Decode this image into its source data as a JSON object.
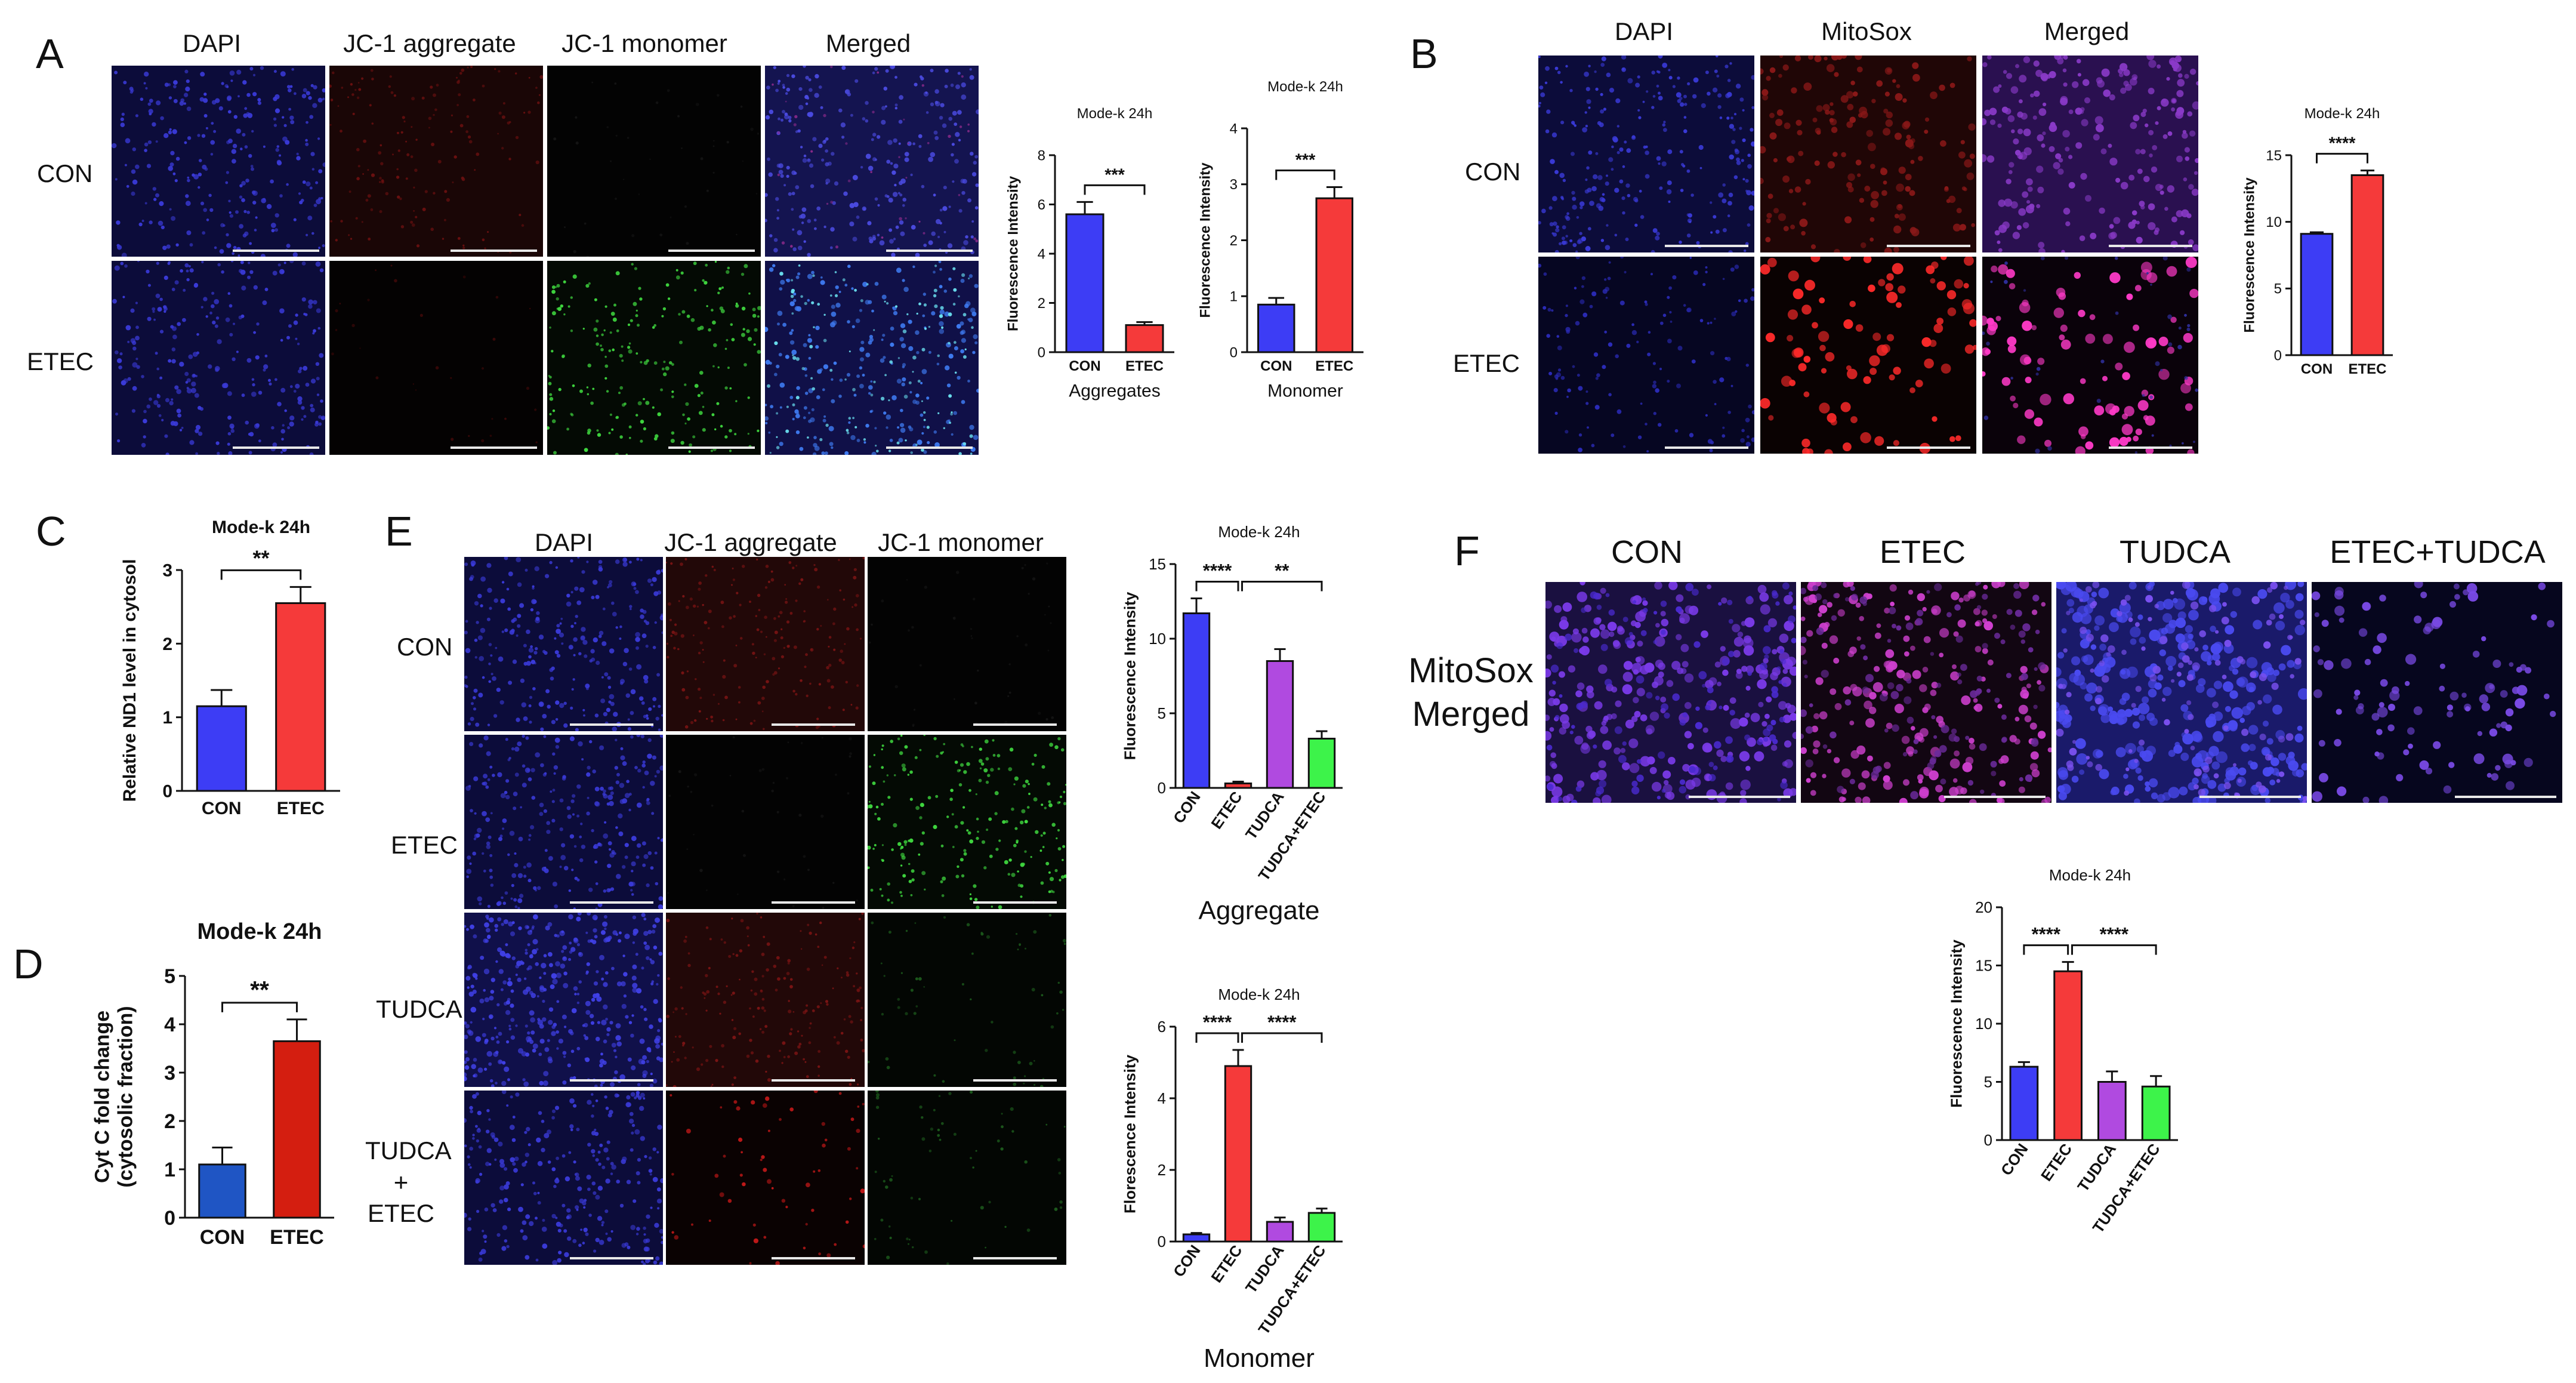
{
  "panels": {
    "A": {
      "label": "A",
      "columns": [
        "DAPI",
        "JC-1 aggregate",
        "JC-1 monomer",
        "Merged"
      ],
      "rows": [
        "CON",
        "ETEC"
      ]
    },
    "B": {
      "label": "B",
      "columns": [
        "DAPI",
        "MitoSox",
        "Merged"
      ],
      "rows": [
        "CON",
        "ETEC"
      ]
    },
    "C": {
      "label": "C"
    },
    "D": {
      "label": "D"
    },
    "E": {
      "label": "E",
      "columns": [
        "DAPI",
        "JC-1 aggregate",
        "JC-1 monomer"
      ],
      "rows": [
        "CON",
        "ETEC",
        "TUDCA",
        "TUDCA\n+\nETEC"
      ]
    },
    "F": {
      "label": "F",
      "columns": [
        "CON",
        "ETEC",
        "TUDCA",
        "ETEC+TUDCA"
      ],
      "row_label": "MitoSox\nMerged"
    }
  },
  "colors": {
    "con": "#3d3df5",
    "etec": "#f53a3a",
    "tudca": "#b04ae0",
    "tudca_etec": "#3df34a",
    "con_dark": "#1f55c4",
    "etec_dark": "#d41e10"
  },
  "chart_data": [
    {
      "id": "A1",
      "type": "bar",
      "title": "Mode-k 24h",
      "ylabel": "Fluorescence Intensity",
      "xlabel": "Aggregates",
      "categories": [
        "CON",
        "ETEC"
      ],
      "values": [
        5.6,
        1.1
      ],
      "errors": [
        0.5,
        0.12
      ],
      "ylim": [
        0,
        8
      ],
      "yticks": [
        0,
        2,
        4,
        6,
        8
      ],
      "significance": [
        {
          "from": 0,
          "to": 1,
          "label": "***"
        }
      ]
    },
    {
      "id": "A2",
      "type": "bar",
      "title": "Mode-k 24h",
      "ylabel": "Fluorescence Intensity",
      "xlabel": "Monomer",
      "categories": [
        "CON",
        "ETEC"
      ],
      "values": [
        0.85,
        2.75
      ],
      "errors": [
        0.12,
        0.2
      ],
      "ylim": [
        0,
        4
      ],
      "yticks": [
        0,
        1,
        2,
        3,
        4
      ],
      "significance": [
        {
          "from": 0,
          "to": 1,
          "label": "***"
        }
      ]
    },
    {
      "id": "B1",
      "type": "bar",
      "title": "Mode-k 24h",
      "ylabel": "Fluorescence Intensity",
      "xlabel": "",
      "categories": [
        "CON",
        "ETEC"
      ],
      "values": [
        9.1,
        13.5
      ],
      "errors": [
        0.12,
        0.35
      ],
      "ylim": [
        0,
        15
      ],
      "yticks": [
        0,
        5,
        10,
        15
      ],
      "significance": [
        {
          "from": 0,
          "to": 1,
          "label": "****"
        }
      ]
    },
    {
      "id": "C1",
      "type": "bar",
      "title": "Mode-k 24h",
      "ylabel": "Relative ND1 level in cytosol",
      "xlabel": "",
      "categories": [
        "CON",
        "ETEC"
      ],
      "values": [
        1.15,
        2.55
      ],
      "errors": [
        0.22,
        0.22
      ],
      "ylim": [
        0,
        3
      ],
      "yticks": [
        0,
        1,
        2,
        3
      ],
      "significance": [
        {
          "from": 0,
          "to": 1,
          "label": "**"
        }
      ]
    },
    {
      "id": "D1",
      "type": "bar",
      "title": "Mode-k 24h",
      "ylabel": "Cyt C fold change\n(cytosolic fraction)",
      "xlabel": "",
      "categories": [
        "CON",
        "ETEC"
      ],
      "values": [
        1.1,
        3.65
      ],
      "errors": [
        0.35,
        0.45
      ],
      "ylim": [
        0,
        5
      ],
      "yticks": [
        0,
        1,
        2,
        3,
        4,
        5
      ],
      "significance": [
        {
          "from": 0,
          "to": 1,
          "label": "**"
        }
      ]
    },
    {
      "id": "E1",
      "type": "bar",
      "title": "Mode-k 24h",
      "ylabel": "Fluorescence Intensity",
      "xlabel": "Aggregate",
      "categories": [
        "CON",
        "ETEC",
        "TUDCA",
        "TUDCA+ETEC"
      ],
      "values": [
        11.7,
        0.3,
        8.5,
        3.3
      ],
      "errors": [
        1.0,
        0.12,
        0.8,
        0.5
      ],
      "ylim": [
        0,
        15
      ],
      "yticks": [
        0,
        5,
        10,
        15
      ],
      "significance": [
        {
          "from": 0,
          "to": 1,
          "label": "****"
        },
        {
          "from": 1,
          "to": 3,
          "label": "**"
        }
      ]
    },
    {
      "id": "E2",
      "type": "bar",
      "title": "Mode-k 24h",
      "ylabel": "Florescence Intensity",
      "xlabel": "Monomer",
      "categories": [
        "CON",
        "ETEC",
        "TUDCA",
        "TUDCA+ETEC"
      ],
      "values": [
        0.2,
        4.9,
        0.55,
        0.8
      ],
      "errors": [
        0.04,
        0.45,
        0.12,
        0.12
      ],
      "ylim": [
        0,
        6
      ],
      "yticks": [
        0,
        2,
        4,
        6
      ],
      "significance": [
        {
          "from": 0,
          "to": 1,
          "label": "****"
        },
        {
          "from": 1,
          "to": 3,
          "label": "****"
        }
      ]
    },
    {
      "id": "F1",
      "type": "bar",
      "title": "Mode-k 24h",
      "ylabel": "Fluorescence Intensity",
      "xlabel": "",
      "categories": [
        "CON",
        "ETEC",
        "TUDCA",
        "TUDCA+ETEC"
      ],
      "values": [
        6.3,
        14.5,
        5.0,
        4.6
      ],
      "errors": [
        0.4,
        0.8,
        0.9,
        0.9
      ],
      "ylim": [
        0,
        20
      ],
      "yticks": [
        0,
        5,
        10,
        15,
        20
      ],
      "significance": [
        {
          "from": 0,
          "to": 1,
          "label": "****"
        },
        {
          "from": 1,
          "to": 3,
          "label": "****"
        }
      ]
    }
  ]
}
